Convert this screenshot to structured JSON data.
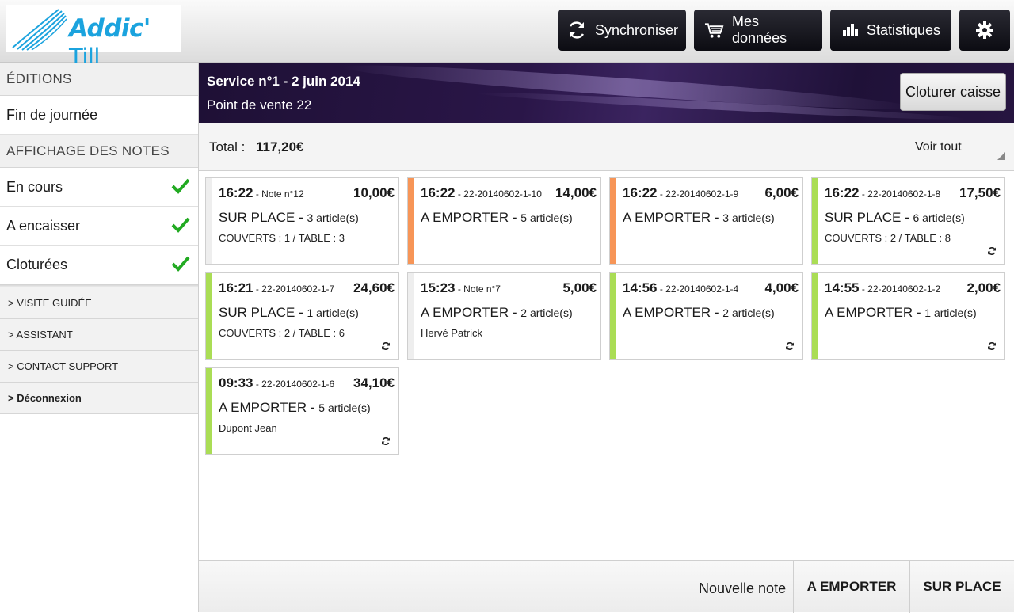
{
  "logo": {
    "brand": "Addic'",
    "suffix": "Till"
  },
  "toolbar": {
    "sync_label": "Synchroniser",
    "data_label": "Mes données",
    "stats_label": "Statistiques"
  },
  "sidebar": {
    "editions_head": "ÉDITIONS",
    "end_of_day": "Fin de journée",
    "notes_head": "AFFICHAGE DES NOTES",
    "filters": [
      {
        "label": "En cours",
        "checked": true
      },
      {
        "label": "A encaisser",
        "checked": true
      },
      {
        "label": "Cloturées",
        "checked": true
      }
    ],
    "links": [
      "> VISITE GUIDÉE",
      "> ASSISTANT",
      "> CONTACT SUPPORT",
      "> Déconnexion"
    ]
  },
  "service": {
    "title": "Service n°1 - 2 juin 2014",
    "point_of_sale": "Point de vente 22",
    "close_label": "Cloturer caisse"
  },
  "summary": {
    "total_label": "Total :",
    "total_value": "117,20€",
    "filter_value": "Voir tout"
  },
  "colors": {
    "green": "#aadd55",
    "orange": "#f79557",
    "neutral": "#eeeeee"
  },
  "notes": [
    {
      "time": "16:22",
      "ref": " - Note n°12",
      "amount": "10,00€",
      "type": "SUR PLACE - ",
      "articles": "3 article(s)",
      "info": "COUVERTS : 1 / TABLE : 3",
      "status": "neutral",
      "sync": false
    },
    {
      "time": "16:22",
      "ref": " - 22-20140602-1-10",
      "amount": "14,00€",
      "type": "A EMPORTER - ",
      "articles": "5 article(s)",
      "info": "",
      "status": "orange",
      "sync": false
    },
    {
      "time": "16:22",
      "ref": " - 22-20140602-1-9",
      "amount": "6,00€",
      "type": "A EMPORTER - ",
      "articles": "3 article(s)",
      "info": "",
      "status": "orange",
      "sync": false
    },
    {
      "time": "16:22",
      "ref": " - 22-20140602-1-8",
      "amount": "17,50€",
      "type": "SUR PLACE - ",
      "articles": "6 article(s)",
      "info": "COUVERTS : 2 / TABLE : 8",
      "status": "green",
      "sync": true
    },
    {
      "time": "16:21",
      "ref": " - 22-20140602-1-7",
      "amount": "24,60€",
      "type": "SUR PLACE - ",
      "articles": "1 article(s)",
      "info": "COUVERTS : 2 / TABLE : 6",
      "status": "green",
      "sync": true
    },
    {
      "time": "15:23",
      "ref": " - Note n°7",
      "amount": "5,00€",
      "type": "A EMPORTER - ",
      "articles": "2 article(s)",
      "info": "Hervé Patrick",
      "status": "neutral",
      "sync": false
    },
    {
      "time": "14:56",
      "ref": " - 22-20140602-1-4",
      "amount": "4,00€",
      "type": "A EMPORTER - ",
      "articles": "2 article(s)",
      "info": "",
      "status": "green",
      "sync": true
    },
    {
      "time": "14:55",
      "ref": " - 22-20140602-1-2",
      "amount": "2,00€",
      "type": "A EMPORTER - ",
      "articles": "1 article(s)",
      "info": "",
      "status": "green",
      "sync": true
    },
    {
      "time": "09:33",
      "ref": " - 22-20140602-1-6",
      "amount": "34,10€",
      "type": "A EMPORTER - ",
      "articles": "5 article(s)",
      "info": "Dupont Jean",
      "status": "green",
      "sync": true
    }
  ],
  "footer": {
    "new_note_label": "Nouvelle note",
    "takeaway_label": "A EMPORTER",
    "onsite_label": "SUR PLACE"
  }
}
